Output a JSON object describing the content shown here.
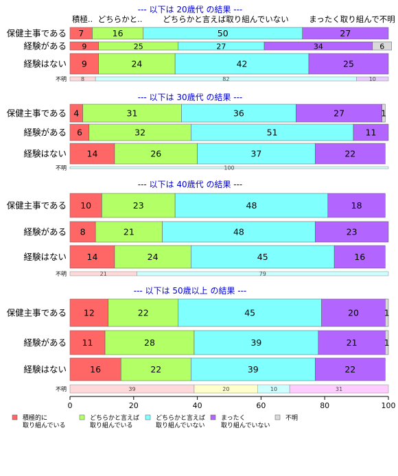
{
  "chart_data": {
    "type": "bar",
    "orientation": "horizontal",
    "stacked": "percent",
    "xlim": [
      0,
      100
    ],
    "x_ticks": [
      "0",
      "20",
      "40",
      "60",
      "80",
      "100"
    ],
    "legend": {
      "placement": "bottom",
      "entries": [
        {
          "label": [
            "積極的に",
            "取り組んでいる"
          ],
          "color": "#ff6666"
        },
        {
          "label": [
            "どちらかと言えば",
            "取り組んでいる"
          ],
          "color": "#b3ff66"
        },
        {
          "label": [
            "どちらかと言えば",
            "取り組んでいない"
          ],
          "color": "#80ffff"
        },
        {
          "label": [
            "まったく",
            "取り組んでいない"
          ],
          "color": "#b366ff"
        },
        {
          "label": [
            "不明"
          ],
          "color": "#d9d9d9"
        }
      ]
    },
    "unknown_color": "#d9d9d9",
    "panels": [
      {
        "title": "--- 以下は 20歳代 の結果 ---",
        "column_headers": [
          "積極..",
          "どちらかと..",
          "どちらかと言えば取り組んでいない",
          "",
          "まったく取り組んで不明"
        ],
        "rows": [
          {
            "label": "保健主事である",
            "values": [
              7,
              16,
              50,
              27,
              0
            ],
            "labels": [
              "7",
              "16",
              "50",
              "27",
              ""
            ]
          },
          {
            "label": "経験がある",
            "values": [
              9,
              25,
              27,
              34,
              6
            ],
            "labels": [
              "9",
              "25",
              "27",
              "34",
              "6"
            ]
          },
          {
            "label": "経験はない",
            "values": [
              9,
              24,
              42,
              25,
              0
            ],
            "labels": [
              "9",
              "24",
              "42",
              "25",
              ""
            ]
          }
        ],
        "unknown": {
          "label": "不明",
          "values": [
            8,
            82,
            10
          ],
          "labels": [
            "8",
            "82",
            "10"
          ],
          "colors": [
            "#ffd9d9",
            "#ccffff",
            "#e6ccff"
          ]
        }
      },
      {
        "title": "--- 以下は 30歳代 の結果 ---",
        "rows": [
          {
            "label": "保健主事である",
            "values": [
              4,
              31,
              36,
              27,
              1
            ],
            "labels": [
              "4",
              "31",
              "36",
              "27",
              "1"
            ]
          },
          {
            "label": "経験がある",
            "values": [
              6,
              32,
              51,
              11,
              0
            ],
            "labels": [
              "6",
              "32",
              "51",
              "11",
              ""
            ]
          },
          {
            "label": "経験はない",
            "values": [
              14,
              26,
              37,
              22,
              0
            ],
            "labels": [
              "14",
              "26",
              "37",
              "22",
              ""
            ]
          }
        ],
        "unknown": {
          "label": "不明",
          "values": [
            100
          ],
          "labels": [
            "100"
          ],
          "colors": [
            "#ccffff"
          ]
        }
      },
      {
        "title": "--- 以下は 40歳代 の結果 ---",
        "rows": [
          {
            "label": "保健主事である",
            "values": [
              10,
              23,
              48,
              18,
              0
            ],
            "labels": [
              "10",
              "23",
              "48",
              "18",
              ""
            ]
          },
          {
            "label": "経験がある",
            "values": [
              8,
              21,
              48,
              23,
              0
            ],
            "labels": [
              "8",
              "21",
              "48",
              "23",
              ""
            ]
          },
          {
            "label": "経験はない",
            "values": [
              14,
              24,
              45,
              16,
              0
            ],
            "labels": [
              "14",
              "24",
              "45",
              "16",
              ""
            ]
          }
        ],
        "unknown": {
          "label": "不明",
          "values": [
            21,
            79
          ],
          "labels": [
            "21",
            "79"
          ],
          "colors": [
            "#ffd9d9",
            "#ccffff"
          ]
        }
      },
      {
        "title": "--- 以下は 50歳以上 の結果 ---",
        "rows": [
          {
            "label": "保健主事である",
            "values": [
              12,
              22,
              45,
              20,
              1
            ],
            "labels": [
              "12",
              "22",
              "45",
              "20",
              "1"
            ]
          },
          {
            "label": "経験がある",
            "values": [
              11,
              28,
              39,
              21,
              1
            ],
            "labels": [
              "11",
              "28",
              "39",
              "21",
              "1"
            ]
          },
          {
            "label": "経験はない",
            "values": [
              16,
              22,
              39,
              22,
              0
            ],
            "labels": [
              "16",
              "22",
              "39",
              "22",
              ""
            ]
          }
        ],
        "unknown": {
          "label": "不明",
          "values": [
            39,
            20,
            10,
            31
          ],
          "labels": [
            "39",
            "20",
            "10",
            "31"
          ],
          "colors": [
            "#ffd9d9",
            "#ffffcc",
            "#ccffff",
            "#ffccff"
          ]
        }
      }
    ]
  }
}
